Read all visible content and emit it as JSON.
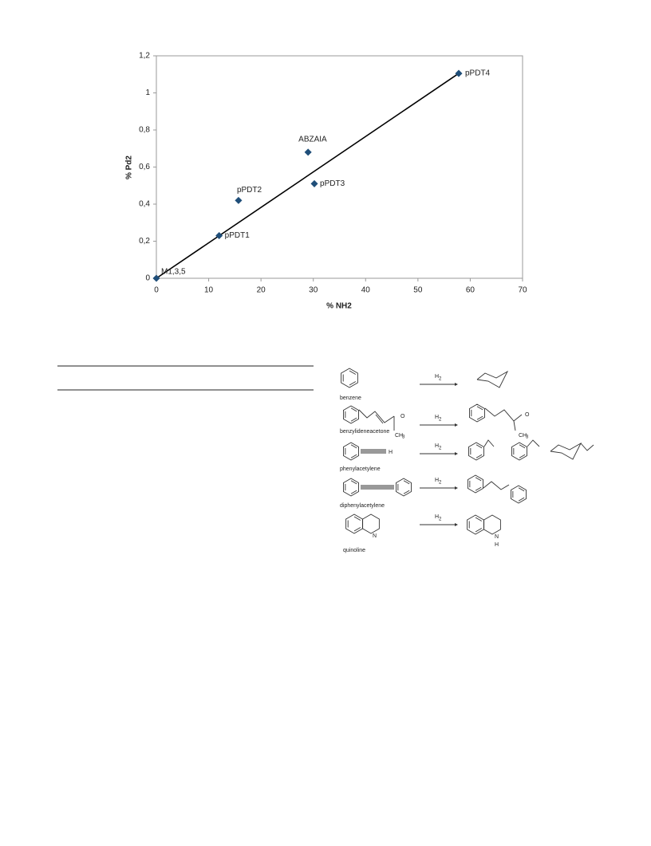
{
  "chart_data": {
    "type": "scatter",
    "x_label": "% NH2",
    "y_label": "% Pd2",
    "x": [
      0,
      12.0,
      15.7,
      30.2,
      29.0,
      57.8
    ],
    "values": [
      0,
      0.23,
      0.42,
      0.51,
      0.68,
      1.105
    ],
    "point_labels": [
      "M1,3,5",
      "pPDT1",
      "pPDT2",
      "pPDT3",
      "ABZAIA",
      "pPDT4"
    ],
    "color": "#1f4e79",
    "trendline": {
      "x": [
        0,
        57.8
      ],
      "y": [
        0,
        1.105
      ],
      "color": "#000000"
    },
    "xlim": [
      0,
      70
    ],
    "xticks": [
      0,
      10,
      20,
      30,
      40,
      50,
      60,
      70
    ],
    "ylim": [
      0,
      1.2
    ],
    "yticks": [
      0,
      {
        "value": 0.2,
        "label": "0,2"
      },
      {
        "value": 0.4,
        "label": "0,4"
      },
      {
        "value": 0.6,
        "label": "0,6"
      },
      {
        "value": 0.8,
        "label": "0,8"
      },
      1,
      {
        "value": 1.2,
        "label": "1,2"
      }
    ]
  },
  "scheme": {
    "reactions": [
      {
        "reactant": "benzene",
        "reagent": [
          "H",
          "2"
        ]
      },
      {
        "reactant": "benzylideneacetone",
        "reagent": [
          "H",
          "2"
        ],
        "reactant_atoms": [
          "O",
          "CH",
          "3"
        ],
        "product_atoms": [
          "O",
          "CH",
          "3"
        ]
      },
      {
        "reactant": "phenylacetylene",
        "reagent": [
          "H",
          "2"
        ],
        "reactant_atoms": [
          "H"
        ]
      },
      {
        "reactant": "diphenylacetylene",
        "reagent": [
          "H",
          "2"
        ]
      },
      {
        "reactant": "quinoline",
        "reagent": [
          "H",
          "2"
        ],
        "reactant_atoms": [
          "N"
        ],
        "product_atoms": [
          "N",
          "H"
        ]
      }
    ]
  }
}
